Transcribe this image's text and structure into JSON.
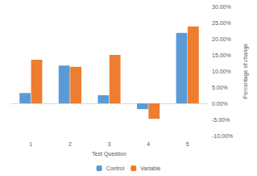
{
  "chart_data": {
    "type": "bar",
    "x_label": "Test Question",
    "y_label": "Percentage of change",
    "categories": [
      "1",
      "2",
      "3",
      "4",
      "5"
    ],
    "series": [
      {
        "name": "Control",
        "color": "#5b9bd5",
        "values": [
          3.2,
          11.7,
          2.5,
          -1.8,
          21.8
        ]
      },
      {
        "name": "Variable",
        "color": "#ed7d31",
        "values": [
          13.5,
          11.3,
          15.0,
          -4.8,
          23.8
        ]
      }
    ],
    "ylim": [
      -10,
      30
    ],
    "yticks": [
      {
        "value": -10,
        "label": "-10.00%"
      },
      {
        "value": -5,
        "label": "-5.00%"
      },
      {
        "value": 0,
        "label": "0.00%"
      },
      {
        "value": 5,
        "label": "5.00%"
      },
      {
        "value": 10,
        "label": "10.00%"
      },
      {
        "value": 15,
        "label": "15.00%"
      },
      {
        "value": 20,
        "label": "20.00%"
      },
      {
        "value": 25,
        "label": "25.00%"
      },
      {
        "value": 30,
        "label": "30.00%"
      }
    ],
    "grid": false,
    "legend": "bottom"
  }
}
